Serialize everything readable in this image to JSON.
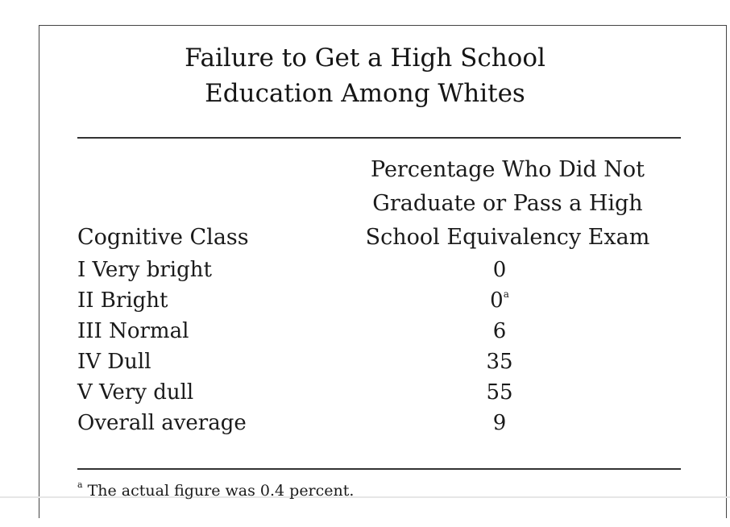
{
  "title": {
    "line1": "Failure to Get a High School",
    "line2": "Education Among Whites"
  },
  "columns": {
    "class_header": "Cognitive Class",
    "value_header_lines": [
      "Percentage Who Did Not",
      "Graduate or Pass a High",
      "School Equivalency Exam"
    ]
  },
  "rows": [
    {
      "label": "I Very bright",
      "value": "0",
      "note": ""
    },
    {
      "label": "II Bright",
      "value": "0",
      "note": "a"
    },
    {
      "label": "III Normal",
      "value": "6",
      "note": ""
    },
    {
      "label": "IV Dull",
      "value": "35",
      "note": ""
    },
    {
      "label": "V Very dull",
      "value": "55",
      "note": ""
    },
    {
      "label": "Overall average",
      "value": "9",
      "note": ""
    }
  ],
  "footnote": {
    "marker": "a",
    "text": " The actual figure was 0.4 percent."
  }
}
